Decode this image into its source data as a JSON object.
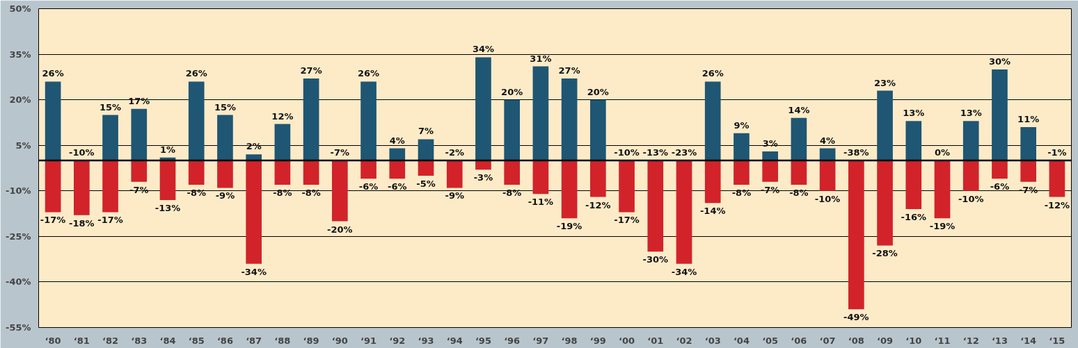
{
  "chart_data": {
    "type": "bar",
    "categories": [
      "‘80",
      "‘81",
      "‘82",
      "‘83",
      "‘84",
      "‘85",
      "‘86",
      "‘87",
      "‘88",
      "‘89",
      "‘90",
      "‘91",
      "‘92",
      "‘93",
      "‘94",
      "‘95",
      "‘96",
      "‘97",
      "‘98",
      "‘99",
      "‘00",
      "‘01",
      "‘02",
      "‘03",
      "‘04",
      "‘05",
      "‘06",
      "‘07",
      "‘08",
      "‘09",
      "‘10",
      "‘11",
      "‘12",
      "‘13",
      "‘14",
      "‘15"
    ],
    "series": [
      {
        "color": "#1f5673",
        "values": [
          26,
          null,
          15,
          17,
          1,
          26,
          15,
          2,
          12,
          27,
          null,
          26,
          4,
          7,
          null,
          34,
          20,
          31,
          27,
          20,
          null,
          null,
          null,
          26,
          9,
          3,
          14,
          4,
          null,
          23,
          13,
          0,
          13,
          30,
          11,
          null
        ],
        "value_labels": [
          "26%",
          "-10%",
          "15%",
          "17%",
          "1%",
          "26%",
          "15%",
          "2%",
          "12%",
          "27%",
          "-7%",
          "26%",
          "4%",
          "7%",
          "-2%",
          "34%",
          "20%",
          "31%",
          "27%",
          "20%",
          "-10%",
          "-13%",
          "-23%",
          "26%",
          "9%",
          "3%",
          "14%",
          "4%",
          "-38%",
          "23%",
          "13%",
          "0%",
          "13%",
          "30%",
          "11%",
          "-1%"
        ]
      },
      {
        "color": "#d2232a",
        "values": [
          -17,
          -18,
          -17,
          -7,
          -13,
          -8,
          -9,
          -34,
          -8,
          -8,
          -20,
          -6,
          -6,
          -5,
          -9,
          -3,
          -8,
          -11,
          -19,
          -12,
          -17,
          -30,
          -34,
          -14,
          -8,
          -7,
          -8,
          -10,
          -49,
          -28,
          -16,
          -19,
          -10,
          -6,
          -7,
          -12
        ],
        "value_labels": [
          "-17%",
          "-18%",
          "-17%",
          "-7%",
          "-13%",
          "-8%",
          "-9%",
          "-34%",
          "-8%",
          "-8%",
          "-20%",
          "-6%",
          "-6%",
          "-5%",
          "-9%",
          "-3%",
          "-8%",
          "-11%",
          "-19%",
          "-12%",
          "-17%",
          "-30%",
          "-34%",
          "-14%",
          "-8%",
          "-7%",
          "-8%",
          "-10%",
          "-49%",
          "-28%",
          "-16%",
          "-19%",
          "-10%",
          "-6%",
          "-7%",
          "-12%"
        ]
      }
    ],
    "ylim": [
      -55,
      50
    ],
    "yticks": [
      {
        "value": 50,
        "label": "50%"
      },
      {
        "value": 35,
        "label": "35%"
      },
      {
        "value": 20,
        "label": "20%"
      },
      {
        "value": 5,
        "label": "5%"
      },
      {
        "value": -10,
        "label": "-10%"
      },
      {
        "value": -25,
        "label": "-25%"
      },
      {
        "value": -40,
        "label": "-40%"
      },
      {
        "value": -55,
        "label": "-55%"
      }
    ],
    "ref_lines": [
      {
        "axis": "y",
        "value": 0,
        "color": "#000000"
      }
    ],
    "grid": "y",
    "stacked": true
  }
}
